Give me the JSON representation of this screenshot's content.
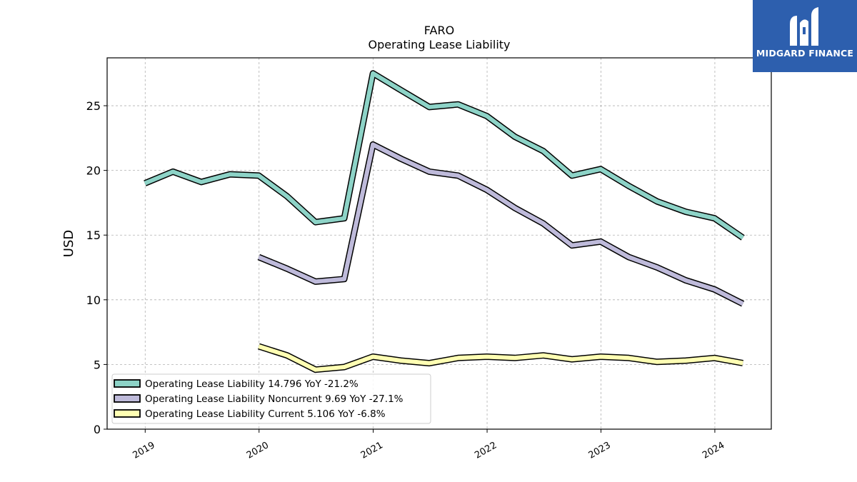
{
  "logo": {
    "text": "MIDGARD FINANCE",
    "icon": "midgard-logo-icon",
    "background": "#2d5fae"
  },
  "chart_data": {
    "type": "line",
    "title": "FARO",
    "subtitle": "Operating Lease Liability",
    "xlabel": "",
    "ylabel": "USD",
    "xlim": [
      "2018-09-01",
      "2024-06-30"
    ],
    "ylim": [
      0,
      28.7
    ],
    "yticks": [
      0,
      5,
      10,
      15,
      20,
      25
    ],
    "xticks": [
      "2019-01-01",
      "2020-01-01",
      "2021-01-01",
      "2022-01-01",
      "2023-01-01",
      "2024-01-01"
    ],
    "xtick_labels": [
      "2019",
      "2020",
      "2021",
      "2022",
      "2023",
      "2024"
    ],
    "grid": true,
    "legend_position": "lower-left",
    "series": [
      {
        "name": "Operating Lease Liability",
        "legend_label": "Operating Lease Liability  14.796 YoY -21.2%",
        "color": "#8dd3c7",
        "points": [
          [
            "2018-12-31",
            19.0
          ],
          [
            "2019-03-31",
            19.9
          ],
          [
            "2019-06-30",
            19.1
          ],
          [
            "2019-09-30",
            19.7
          ],
          [
            "2019-12-31",
            19.6
          ],
          [
            "2020-03-31",
            18.0
          ],
          [
            "2020-06-30",
            16.0
          ],
          [
            "2020-09-30",
            16.3
          ],
          [
            "2020-12-31",
            27.5
          ],
          [
            "2021-03-31",
            26.2
          ],
          [
            "2021-06-30",
            24.9
          ],
          [
            "2021-09-30",
            25.1
          ],
          [
            "2021-12-31",
            24.2
          ],
          [
            "2022-03-31",
            22.6
          ],
          [
            "2022-06-30",
            21.5
          ],
          [
            "2022-09-30",
            19.6
          ],
          [
            "2022-12-31",
            20.1
          ],
          [
            "2023-03-31",
            18.8
          ],
          [
            "2023-06-30",
            17.6
          ],
          [
            "2023-09-30",
            16.8
          ],
          [
            "2023-12-31",
            16.3
          ],
          [
            "2024-03-31",
            14.796
          ]
        ]
      },
      {
        "name": "Operating Lease Liability Noncurrent",
        "legend_label": "Operating Lease Liability Noncurrent  9.69 YoY -27.1%",
        "color": "#bebada",
        "points": [
          [
            "2019-12-31",
            13.3
          ],
          [
            "2020-03-31",
            12.4
          ],
          [
            "2020-06-30",
            11.4
          ],
          [
            "2020-09-30",
            11.6
          ],
          [
            "2020-12-31",
            22.0
          ],
          [
            "2021-03-31",
            20.9
          ],
          [
            "2021-06-30",
            19.9
          ],
          [
            "2021-09-30",
            19.6
          ],
          [
            "2021-12-31",
            18.5
          ],
          [
            "2022-03-31",
            17.1
          ],
          [
            "2022-06-30",
            15.9
          ],
          [
            "2022-09-30",
            14.2
          ],
          [
            "2022-12-31",
            14.5
          ],
          [
            "2023-03-31",
            13.3
          ],
          [
            "2023-06-30",
            12.5
          ],
          [
            "2023-09-30",
            11.5
          ],
          [
            "2023-12-31",
            10.8
          ],
          [
            "2024-03-31",
            9.69
          ]
        ]
      },
      {
        "name": "Operating Lease Liability Current",
        "legend_label": "Operating Lease Liability Current  5.106 YoY -6.8%",
        "color": "#ffffb3",
        "points": [
          [
            "2019-12-31",
            6.4
          ],
          [
            "2020-03-31",
            5.7
          ],
          [
            "2020-06-30",
            4.6
          ],
          [
            "2020-09-30",
            4.8
          ],
          [
            "2020-12-31",
            5.6
          ],
          [
            "2021-03-31",
            5.3
          ],
          [
            "2021-06-30",
            5.1
          ],
          [
            "2021-09-30",
            5.5
          ],
          [
            "2021-12-31",
            5.6
          ],
          [
            "2022-03-31",
            5.5
          ],
          [
            "2022-06-30",
            5.7
          ],
          [
            "2022-09-30",
            5.4
          ],
          [
            "2022-12-31",
            5.6
          ],
          [
            "2023-03-31",
            5.5
          ],
          [
            "2023-06-30",
            5.2
          ],
          [
            "2023-09-30",
            5.3
          ],
          [
            "2023-12-31",
            5.5
          ],
          [
            "2024-03-31",
            5.106
          ]
        ]
      }
    ]
  }
}
